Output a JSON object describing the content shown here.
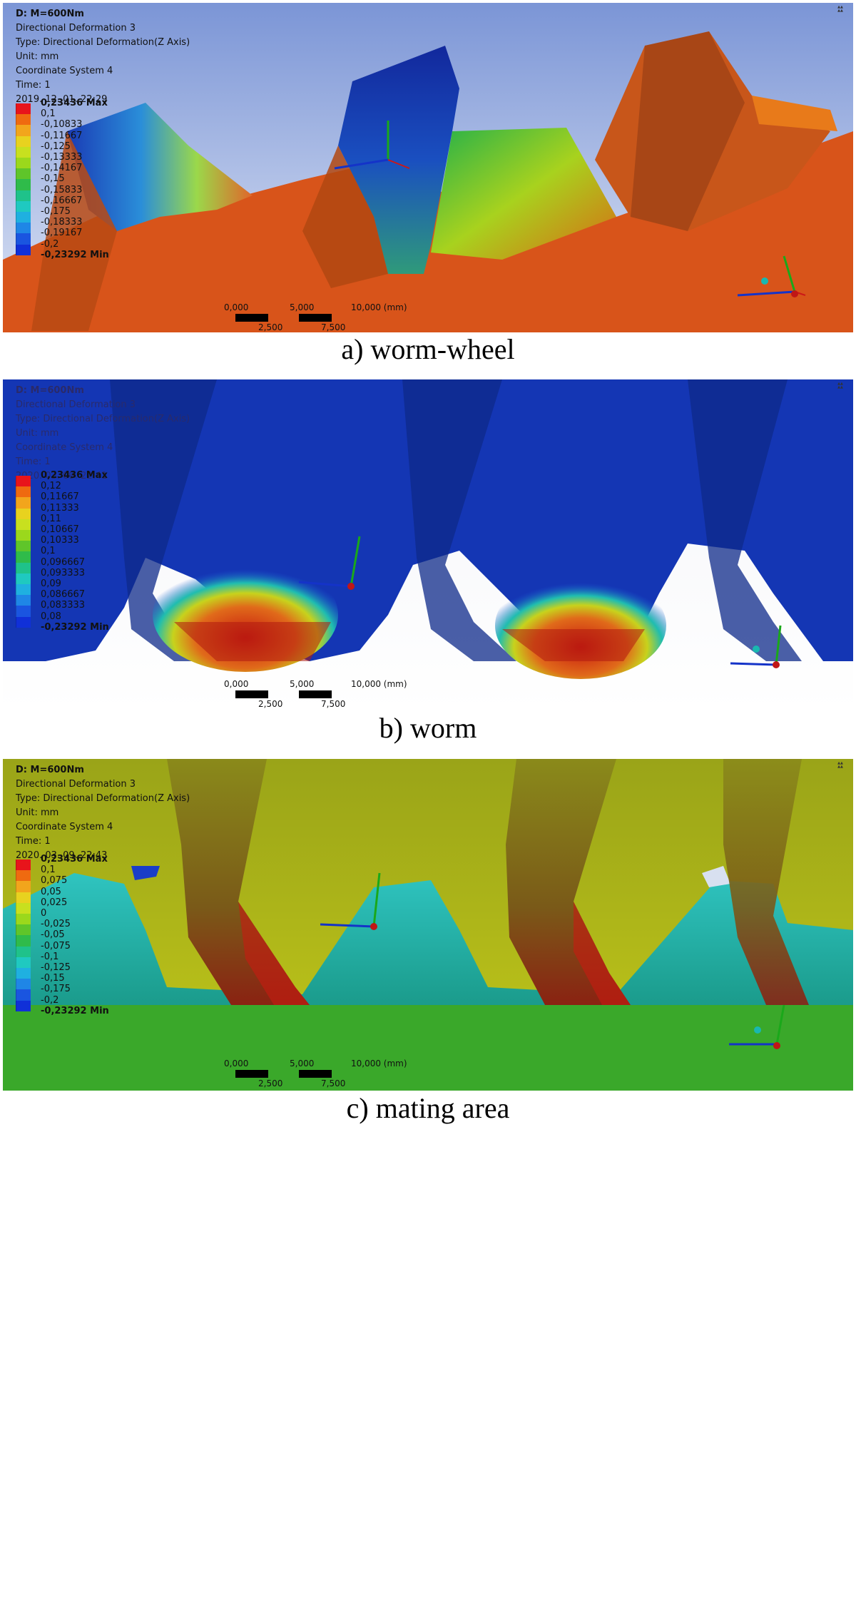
{
  "panels": [
    {
      "info": [
        "D: M=600Nm",
        "Directional Deformation 3",
        "Type: Directional Deformation(Z Axis)",
        "Unit: mm",
        "Coordinate System 4",
        "Time: 1",
        "2019. 12. 01. 22:29"
      ],
      "legend": [
        "0,23436 Max",
        "0,1",
        "-0,10833",
        "-0,11667",
        "-0,125",
        "-0,13333",
        "-0,14167",
        "-0,15",
        "-0,15833",
        "-0,16667",
        "-0,175",
        "-0,18333",
        "-0,19167",
        "-0,2",
        "-0,23292 Min"
      ],
      "scale": {
        "a": "0,000",
        "b": "5,000",
        "c": "10,000 (mm)",
        "d": "2,500",
        "e": "7,500"
      },
      "caption": "a) worm-wheel"
    },
    {
      "info": [
        "D: M=600Nm",
        "Directional Deformation 3",
        "Type: Directional Deformation(Z Axis)",
        "Unit: mm",
        "Coordinate System 4",
        "Time: 1",
        "2020. 03. 09. 22:41"
      ],
      "legend": [
        "0,23436 Max",
        "0,12",
        "0,11667",
        "0,11333",
        "0,11",
        "0,10667",
        "0,10333",
        "0,1",
        "0,096667",
        "0,093333",
        "0,09",
        "0,086667",
        "0,083333",
        "0,08",
        "-0,23292 Min"
      ],
      "scale": {
        "a": "0,000",
        "b": "5,000",
        "c": "10,000 (mm)",
        "d": "2,500",
        "e": "7,500"
      },
      "caption": "b) worm"
    },
    {
      "info": [
        "D: M=600Nm",
        "Directional Deformation 3",
        "Type: Directional Deformation(Z Axis)",
        "Unit: mm",
        "Coordinate System 4",
        "Time: 1",
        "2020. 03. 09. 22:43"
      ],
      "legend": [
        "0,23436 Max",
        "0,1",
        "0,075",
        "0,05",
        "0,025",
        "0",
        "-0,025",
        "-0,05",
        "-0,075",
        "-0,1",
        "-0,125",
        "-0,15",
        "-0,175",
        "-0,2",
        "-0,23292 Min"
      ],
      "scale": {
        "a": "0,000",
        "b": "5,000",
        "c": "10,000 (mm)",
        "d": "2,500",
        "e": "7,500"
      },
      "caption": "c) mating area"
    }
  ],
  "axes": {
    "y": "Y",
    "z": "Z",
    "x": "X"
  },
  "legend_colors": [
    "#e8141b",
    "#ef6a10",
    "#f2a51c",
    "#e8d21f",
    "#c8e01f",
    "#9bd81c",
    "#5fc52a",
    "#2fbb4a",
    "#1fc28a",
    "#1fc9c0",
    "#1fb0e0",
    "#1f86e6",
    "#1a55e0",
    "#1030d8"
  ],
  "colors": {
    "wheel": "#d85a12",
    "worm_blue": "#1035a8",
    "mate_yellow": "#b6c21a",
    "mate_teal": "#1fb6a8"
  }
}
